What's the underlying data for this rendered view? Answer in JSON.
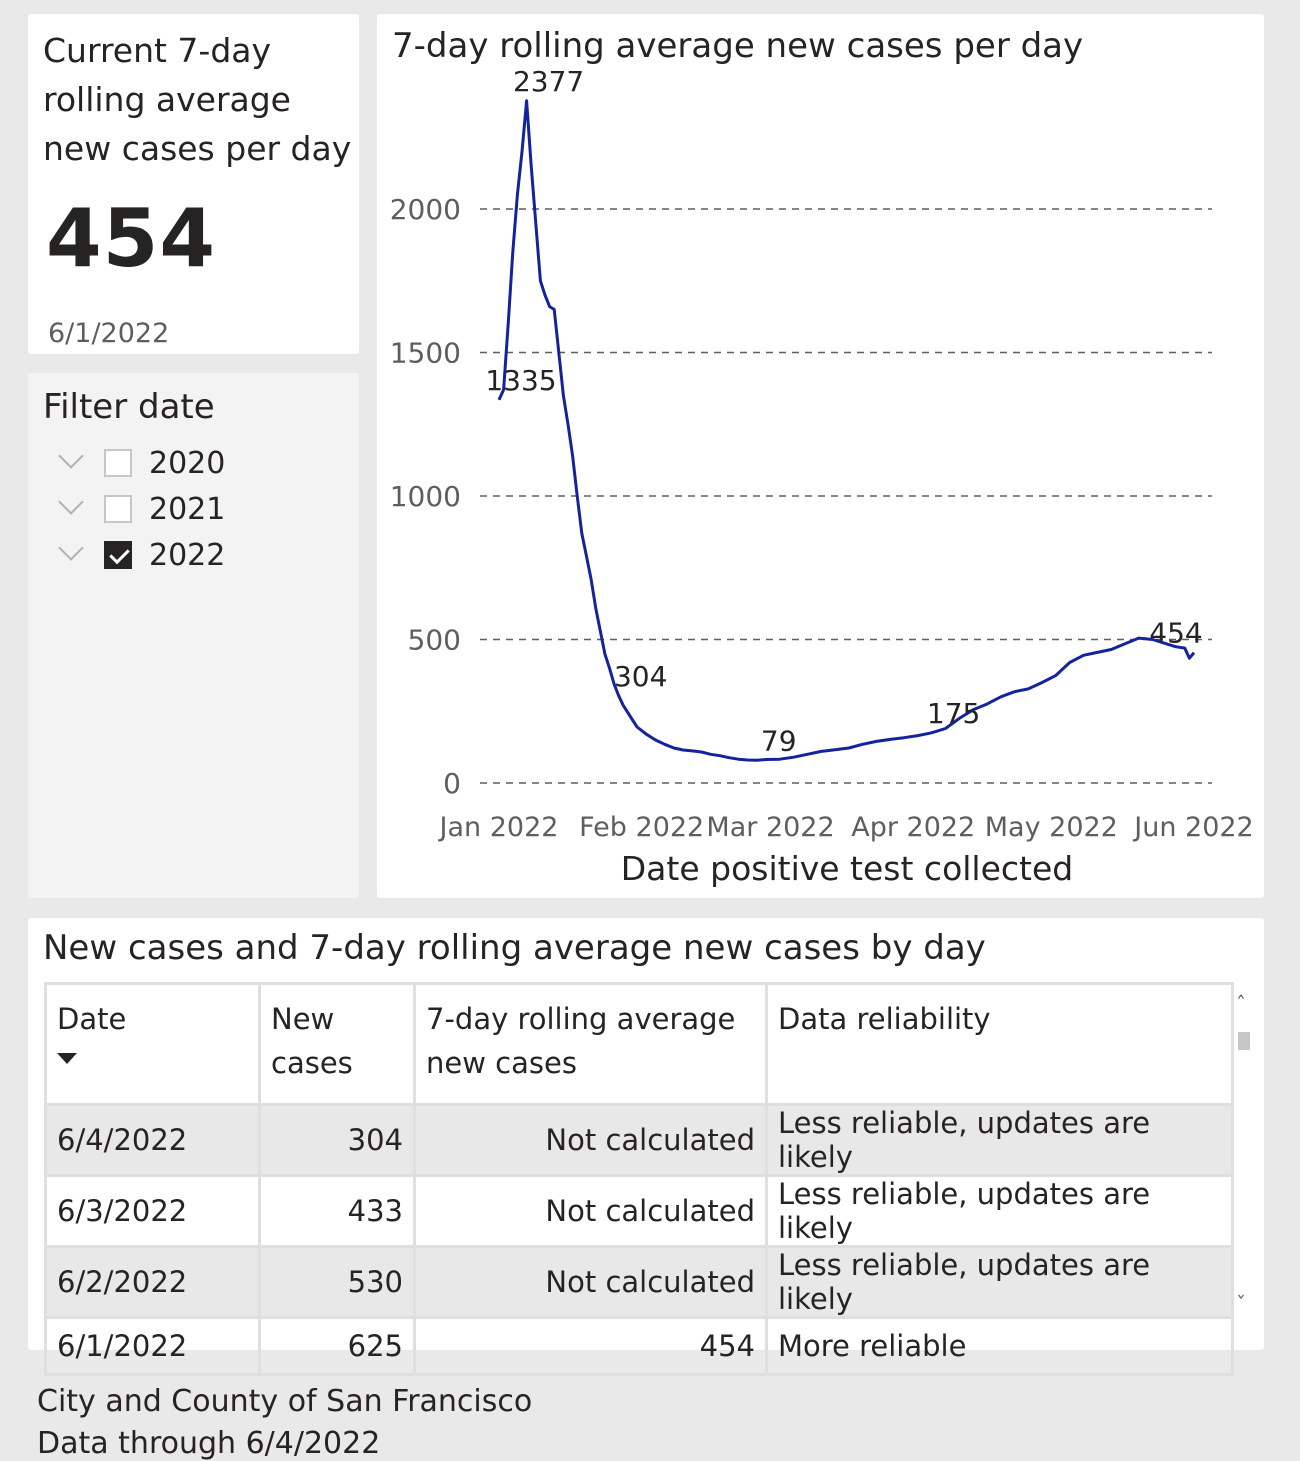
{
  "kpi": {
    "title": "Current 7-day rolling average new cases per day",
    "value": "454",
    "date": "6/1/2022"
  },
  "filter": {
    "title": "Filter date",
    "items": [
      {
        "label": "2020",
        "checked": false
      },
      {
        "label": "2021",
        "checked": false
      },
      {
        "label": "2022",
        "checked": true
      }
    ]
  },
  "chart_data": {
    "type": "line",
    "title": "7-day rolling average new cases per day",
    "xlabel": "Date positive test collected",
    "ylabel": "",
    "ylim": [
      0,
      2400
    ],
    "yticks": [
      0,
      500,
      1000,
      1500,
      2000
    ],
    "ytick_labels": [
      "0",
      "500",
      "1000",
      "1500",
      "2000"
    ],
    "xtick_labels": [
      "Jan 2022",
      "Feb 2022",
      "Mar 2022",
      "Apr 2022",
      "May 2022",
      "Jun 2022"
    ],
    "xtick_dates": [
      "2022-01-01",
      "2022-02-01",
      "2022-03-01",
      "2022-04-01",
      "2022-05-01",
      "2022-06-01"
    ],
    "grid": true,
    "line_color": "#12239e",
    "series": [
      {
        "name": "",
        "points": [
          [
            "2022-01-01",
            1335
          ],
          [
            "2022-01-02",
            1370
          ],
          [
            "2022-01-03",
            1600
          ],
          [
            "2022-01-04",
            1850
          ],
          [
            "2022-01-05",
            2050
          ],
          [
            "2022-01-06",
            2200
          ],
          [
            "2022-01-07",
            2377
          ],
          [
            "2022-01-08",
            2150
          ],
          [
            "2022-01-09",
            1950
          ],
          [
            "2022-01-10",
            1750
          ],
          [
            "2022-01-11",
            1700
          ],
          [
            "2022-01-12",
            1660
          ],
          [
            "2022-01-13",
            1650
          ],
          [
            "2022-01-14",
            1500
          ],
          [
            "2022-01-15",
            1350
          ],
          [
            "2022-01-16",
            1250
          ],
          [
            "2022-01-17",
            1140
          ],
          [
            "2022-01-18",
            1000
          ],
          [
            "2022-01-19",
            870
          ],
          [
            "2022-01-20",
            790
          ],
          [
            "2022-01-21",
            710
          ],
          [
            "2022-01-22",
            610
          ],
          [
            "2022-01-23",
            530
          ],
          [
            "2022-01-24",
            450
          ],
          [
            "2022-01-25",
            400
          ],
          [
            "2022-01-26",
            345
          ],
          [
            "2022-01-27",
            304
          ],
          [
            "2022-01-28",
            270
          ],
          [
            "2022-01-29",
            245
          ],
          [
            "2022-01-30",
            220
          ],
          [
            "2022-01-31",
            195
          ],
          [
            "2022-02-02",
            170
          ],
          [
            "2022-02-04",
            150
          ],
          [
            "2022-02-06",
            135
          ],
          [
            "2022-02-08",
            122
          ],
          [
            "2022-02-10",
            115
          ],
          [
            "2022-02-12",
            112
          ],
          [
            "2022-02-14",
            108
          ],
          [
            "2022-02-16",
            100
          ],
          [
            "2022-02-18",
            95
          ],
          [
            "2022-02-20",
            88
          ],
          [
            "2022-02-22",
            83
          ],
          [
            "2022-02-24",
            80
          ],
          [
            "2022-02-26",
            79
          ],
          [
            "2022-02-28",
            82
          ],
          [
            "2022-03-03",
            83
          ],
          [
            "2022-03-06",
            90
          ],
          [
            "2022-03-09",
            100
          ],
          [
            "2022-03-12",
            110
          ],
          [
            "2022-03-15",
            116
          ],
          [
            "2022-03-18",
            122
          ],
          [
            "2022-03-21",
            135
          ],
          [
            "2022-03-24",
            145
          ],
          [
            "2022-03-27",
            152
          ],
          [
            "2022-03-30",
            158
          ],
          [
            "2022-04-02",
            165
          ],
          [
            "2022-04-05",
            175
          ],
          [
            "2022-04-08",
            190
          ],
          [
            "2022-04-11",
            225
          ],
          [
            "2022-04-14",
            255
          ],
          [
            "2022-04-17",
            275
          ],
          [
            "2022-04-20",
            300
          ],
          [
            "2022-04-23",
            318
          ],
          [
            "2022-04-26",
            328
          ],
          [
            "2022-04-29",
            350
          ],
          [
            "2022-05-02",
            375
          ],
          [
            "2022-05-05",
            420
          ],
          [
            "2022-05-08",
            445
          ],
          [
            "2022-05-11",
            455
          ],
          [
            "2022-05-14",
            465
          ],
          [
            "2022-05-17",
            485
          ],
          [
            "2022-05-20",
            505
          ],
          [
            "2022-05-23",
            500
          ],
          [
            "2022-05-26",
            485
          ],
          [
            "2022-05-28",
            475
          ],
          [
            "2022-05-30",
            470
          ],
          [
            "2022-05-31",
            435
          ],
          [
            "2022-06-01",
            454
          ]
        ]
      }
    ],
    "data_labels": [
      {
        "date": "2022-01-01",
        "value": 1335,
        "text": "1335"
      },
      {
        "date": "2022-01-07",
        "value": 2377,
        "text": "2377"
      },
      {
        "date": "2022-01-27",
        "value": 304,
        "text": "304"
      },
      {
        "date": "2022-02-26",
        "value": 79,
        "text": "79"
      },
      {
        "date": "2022-04-05",
        "value": 175,
        "text": "175"
      },
      {
        "date": "2022-06-01",
        "value": 454,
        "text": "454"
      }
    ]
  },
  "table": {
    "title": "New cases and 7-day rolling average new cases by day",
    "columns": [
      "Date",
      "New cases",
      "7-day rolling average new cases",
      "Data reliability"
    ],
    "rows": [
      {
        "date": "6/4/2022",
        "new_cases": "304",
        "rolling_avg": "Not calculated",
        "reliability": "Less reliable, updates are likely"
      },
      {
        "date": "6/3/2022",
        "new_cases": "433",
        "rolling_avg": "Not calculated",
        "reliability": "Less reliable, updates are likely"
      },
      {
        "date": "6/2/2022",
        "new_cases": "530",
        "rolling_avg": "Not calculated",
        "reliability": "Less reliable, updates are likely"
      },
      {
        "date": "6/1/2022",
        "new_cases": "625",
        "rolling_avg": "454",
        "reliability": "More reliable"
      }
    ]
  },
  "footer": {
    "line1": "City and County of San Francisco",
    "line2": "Data through 6/4/2022"
  }
}
